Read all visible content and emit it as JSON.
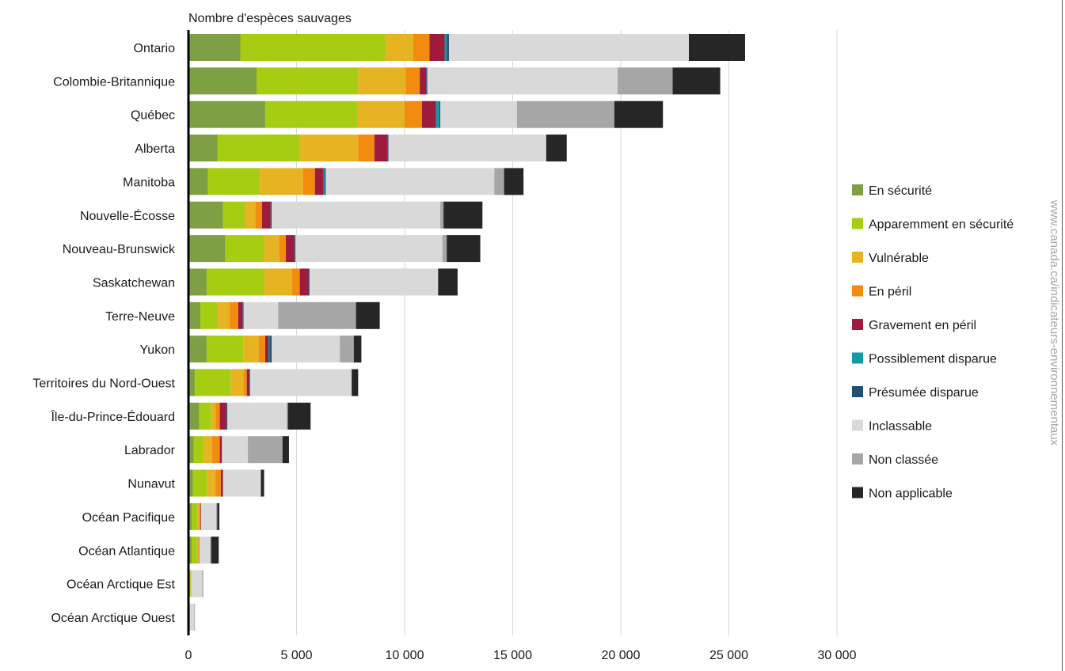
{
  "chart_data": {
    "type": "bar",
    "orientation": "horizontal",
    "stacked": true,
    "title": "Nombre d'espèces sauvages",
    "xlabel": "",
    "ylabel": "",
    "xlim": [
      0,
      30000
    ],
    "xticks": [
      0,
      5000,
      10000,
      15000,
      20000,
      25000,
      30000
    ],
    "xtick_labels": [
      "0",
      "5 000",
      "10 000",
      "15 000",
      "20 000",
      "25 000",
      "30 000"
    ],
    "grid": "vertical",
    "legend_position": "right",
    "source": "www.canada.ca/indicateurs-environnementaux",
    "categories": [
      "Ontario",
      "Colombie-Britannique",
      "Québec",
      "Alberta",
      "Manitoba",
      "Nouvelle-Écosse",
      "Nouveau-Brunswick",
      "Saskatchewan",
      "Terre-Neuve",
      "Yukon",
      "Territoires du Nord-Ouest",
      "Île-du-Prince-Édouard",
      "Labrador",
      "Nunavut",
      "Océan Pacifique",
      "Océan Atlantique",
      "Océan Arctique Est",
      "Océan Arctique Ouest"
    ],
    "series": [
      {
        "name": "En sécurité",
        "color": "#7f9f45",
        "values": [
          2400,
          3150,
          3550,
          1350,
          900,
          1600,
          1700,
          850,
          550,
          850,
          300,
          500,
          250,
          200,
          150,
          150,
          50,
          30
        ]
      },
      {
        "name": "Apparemment en sécurité",
        "color": "#a6cd12",
        "values": [
          6700,
          4700,
          4250,
          3800,
          2400,
          1000,
          1800,
          2650,
          800,
          1700,
          1650,
          550,
          450,
          650,
          250,
          250,
          50,
          20
        ]
      },
      {
        "name": "Vulnérable",
        "color": "#e6b323",
        "values": [
          1300,
          2200,
          2200,
          2700,
          2000,
          500,
          700,
          1300,
          550,
          700,
          600,
          200,
          400,
          400,
          100,
          50,
          20,
          10
        ]
      },
      {
        "name": "En péril",
        "color": "#f18c10",
        "values": [
          750,
          650,
          800,
          750,
          550,
          300,
          300,
          350,
          400,
          300,
          150,
          200,
          350,
          250,
          50,
          30,
          10,
          5
        ]
      },
      {
        "name": "Gravement en péril",
        "color": "#9e1b3c",
        "values": [
          700,
          300,
          650,
          600,
          400,
          400,
          400,
          400,
          200,
          150,
          100,
          300,
          100,
          100,
          30,
          20,
          5,
          5
        ]
      },
      {
        "name": "Possiblement disparue",
        "color": "#0f9ba8",
        "values": [
          100,
          0,
          150,
          0,
          50,
          0,
          0,
          0,
          0,
          50,
          0,
          0,
          0,
          0,
          0,
          0,
          0,
          0
        ]
      },
      {
        "name": "Présumée disparue",
        "color": "#1e5075",
        "values": [
          100,
          50,
          50,
          50,
          50,
          50,
          50,
          50,
          50,
          100,
          50,
          50,
          0,
          0,
          0,
          0,
          0,
          0
        ]
      },
      {
        "name": "Inclassable",
        "color": "#d9d9d9",
        "values": [
          11100,
          8800,
          3550,
          7300,
          7800,
          7800,
          6800,
          5950,
          1600,
          3150,
          4700,
          2750,
          1200,
          1750,
          700,
          500,
          500,
          200
        ]
      },
      {
        "name": "Non classée",
        "color": "#a6a6a6",
        "values": [
          0,
          2550,
          4500,
          0,
          450,
          150,
          200,
          0,
          3600,
          650,
          0,
          50,
          1600,
          0,
          50,
          50,
          50,
          30
        ]
      },
      {
        "name": "Non applicable",
        "color": "#262626",
        "values": [
          2600,
          2200,
          2250,
          950,
          900,
          1800,
          1550,
          900,
          1100,
          350,
          300,
          1050,
          300,
          150,
          100,
          350,
          0,
          0
        ]
      }
    ]
  }
}
